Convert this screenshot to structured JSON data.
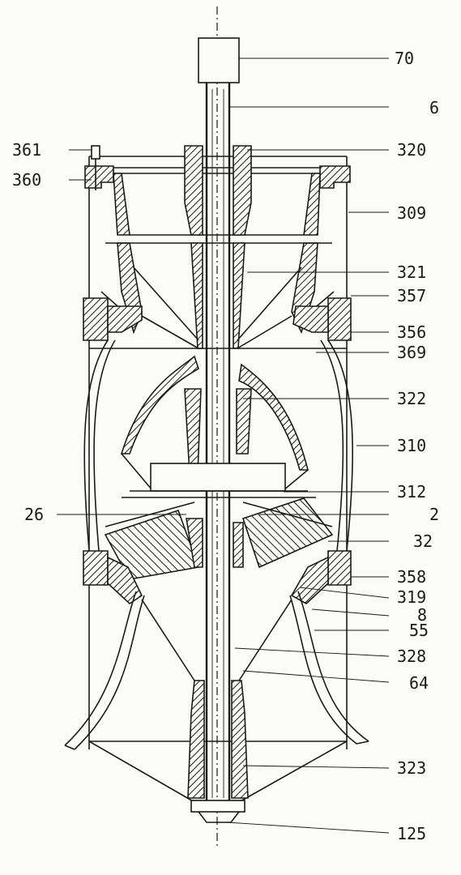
{
  "callouts": {
    "c70": "70",
    "c6": "6",
    "c320": "320",
    "c309": "309",
    "c321": "321",
    "c357": "357",
    "c356": "356",
    "c369": "369",
    "c322": "322",
    "c310": "310",
    "c312": "312",
    "c2": "2",
    "c32": "32",
    "c358": "358",
    "c319": "319",
    "c8": "8",
    "c55": "55",
    "c328": "328",
    "c64": "64",
    "c323": "323",
    "c125": "125",
    "c361": "361",
    "c360": "360",
    "c26": "26"
  },
  "colors": {
    "ink": "#1a1a1a",
    "paper": "#fbfbf9"
  }
}
